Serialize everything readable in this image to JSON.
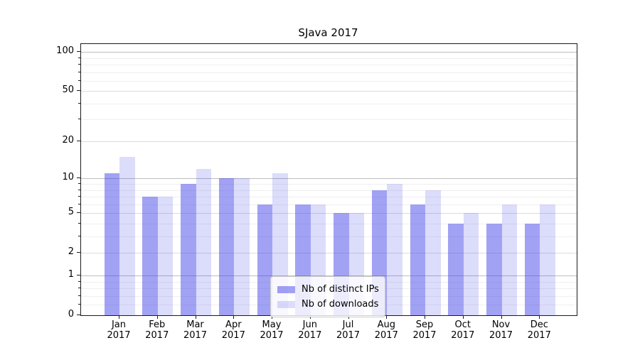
{
  "title": "SJava 2017",
  "chart_data": {
    "type": "bar",
    "title": "SJava 2017",
    "xlabel": "",
    "ylabel": "",
    "scale": "log10(1+y)",
    "grid": true,
    "legend_position": "inside lower-center",
    "categories": [
      "Jan 2017",
      "Feb 2017",
      "Mar 2017",
      "Apr 2017",
      "May 2017",
      "Jun 2017",
      "Jul 2017",
      "Aug 2017",
      "Sep 2017",
      "Oct 2017",
      "Nov 2017",
      "Dec 2017"
    ],
    "series": [
      {
        "name": "Nb of distinct IPs",
        "color": "rgba(60,60,232,0.48)",
        "values": [
          11,
          7,
          9,
          10,
          6,
          6,
          5,
          8,
          6,
          4,
          4,
          4
        ]
      },
      {
        "name": "Nb of downloads",
        "color": "rgba(60,60,232,0.18)",
        "values": [
          15,
          7,
          12,
          10,
          11,
          6,
          5,
          9,
          8,
          5,
          6,
          6
        ]
      }
    ],
    "ylim": [
      0,
      115
    ],
    "yticks_labeled": [
      0,
      1,
      2,
      5,
      10,
      20,
      50,
      100
    ],
    "gridlines": {
      "major": [
        1,
        10,
        100
      ],
      "mid": [
        2,
        5,
        20,
        50
      ],
      "minor": [
        0.2,
        0.4,
        0.6,
        0.8,
        3,
        4,
        6,
        7,
        8,
        9,
        30,
        40,
        60,
        70,
        80,
        90
      ]
    }
  },
  "colors": {
    "grid_major": "#bdbdbd",
    "grid_mid": "#dcdcdc",
    "grid_minor": "#efefef",
    "axis": "#1a1a1a",
    "text": "#000000"
  }
}
